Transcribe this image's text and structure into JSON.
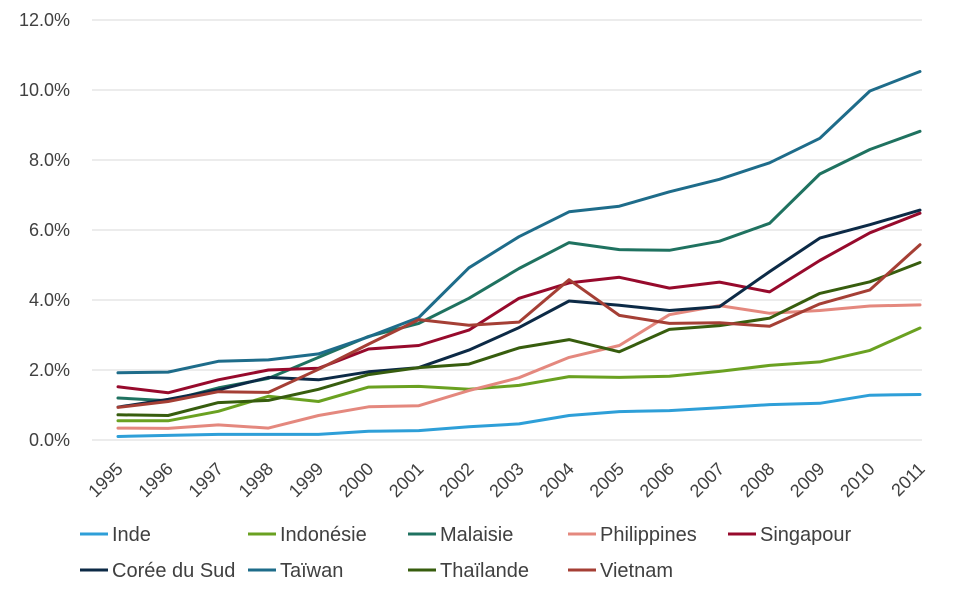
{
  "chart_data": {
    "type": "line",
    "title": "",
    "xlabel": "",
    "ylabel": "",
    "x": [
      "1995",
      "1996",
      "1997",
      "1998",
      "1999",
      "2000",
      "2001",
      "2002",
      "2003",
      "2004",
      "2005",
      "2006",
      "2007",
      "2008",
      "2009",
      "2010",
      "2011"
    ],
    "ylim": [
      0,
      12
    ],
    "y_ticks": [
      0,
      2,
      4,
      6,
      8,
      10,
      12
    ],
    "y_tick_labels": [
      "0.0%",
      "2.0%",
      "4.0%",
      "6.0%",
      "8.0%",
      "10.0%",
      "12.0%"
    ],
    "grid": true,
    "legend_position": "bottom",
    "series": [
      {
        "name": "Inde",
        "color": "#2e9fd8",
        "values": [
          0.1,
          0.13,
          0.16,
          0.16,
          0.16,
          0.25,
          0.27,
          0.38,
          0.46,
          0.7,
          0.81,
          0.84,
          0.92,
          1.01,
          1.05,
          1.28,
          1.3
        ]
      },
      {
        "name": "Indonésie",
        "color": "#6aa121",
        "values": [
          0.55,
          0.55,
          0.82,
          1.25,
          1.1,
          1.51,
          1.53,
          1.45,
          1.56,
          1.81,
          1.79,
          1.82,
          1.96,
          2.13,
          2.23,
          2.56,
          3.2
        ]
      },
      {
        "name": "Malaisie",
        "color": "#1f7260",
        "values": [
          1.2,
          1.12,
          1.49,
          1.76,
          2.36,
          2.96,
          3.33,
          4.05,
          4.9,
          5.64,
          5.44,
          5.42,
          5.68,
          6.19,
          7.6,
          8.3,
          8.82
        ]
      },
      {
        "name": "Philippines",
        "color": "#e4887e",
        "values": [
          0.34,
          0.33,
          0.43,
          0.34,
          0.7,
          0.95,
          0.98,
          1.41,
          1.78,
          2.36,
          2.7,
          3.58,
          3.84,
          3.62,
          3.7,
          3.83,
          3.86
        ]
      },
      {
        "name": "Singapour",
        "color": "#970a2c",
        "values": [
          1.52,
          1.35,
          1.72,
          2.0,
          2.05,
          2.6,
          2.7,
          3.14,
          4.05,
          4.49,
          4.65,
          4.34,
          4.51,
          4.23,
          5.13,
          5.92,
          6.48
        ]
      },
      {
        "name": "Corée du Sud",
        "color": "#0c2a46",
        "values": [
          0.94,
          1.16,
          1.43,
          1.79,
          1.72,
          1.95,
          2.07,
          2.57,
          3.21,
          3.97,
          3.85,
          3.7,
          3.81,
          4.81,
          5.77,
          6.15,
          6.57
        ]
      },
      {
        "name": "Taïwan",
        "color": "#1e6c8a",
        "values": [
          1.92,
          1.94,
          2.25,
          2.29,
          2.46,
          2.95,
          3.5,
          4.92,
          5.81,
          6.52,
          6.68,
          7.09,
          7.45,
          7.92,
          8.62,
          9.97,
          10.53
        ]
      },
      {
        "name": "Thaïlande",
        "color": "#375d0e",
        "values": [
          0.72,
          0.7,
          1.07,
          1.13,
          1.45,
          1.87,
          2.07,
          2.17,
          2.63,
          2.87,
          2.52,
          3.16,
          3.27,
          3.48,
          4.19,
          4.52,
          5.07
        ]
      },
      {
        "name": "Vietnam",
        "color": "#a53f35",
        "values": [
          0.93,
          1.1,
          1.38,
          1.36,
          2.02,
          2.74,
          3.44,
          3.28,
          3.37,
          4.58,
          3.56,
          3.33,
          3.35,
          3.25,
          3.89,
          4.29,
          5.58
        ]
      }
    ]
  }
}
